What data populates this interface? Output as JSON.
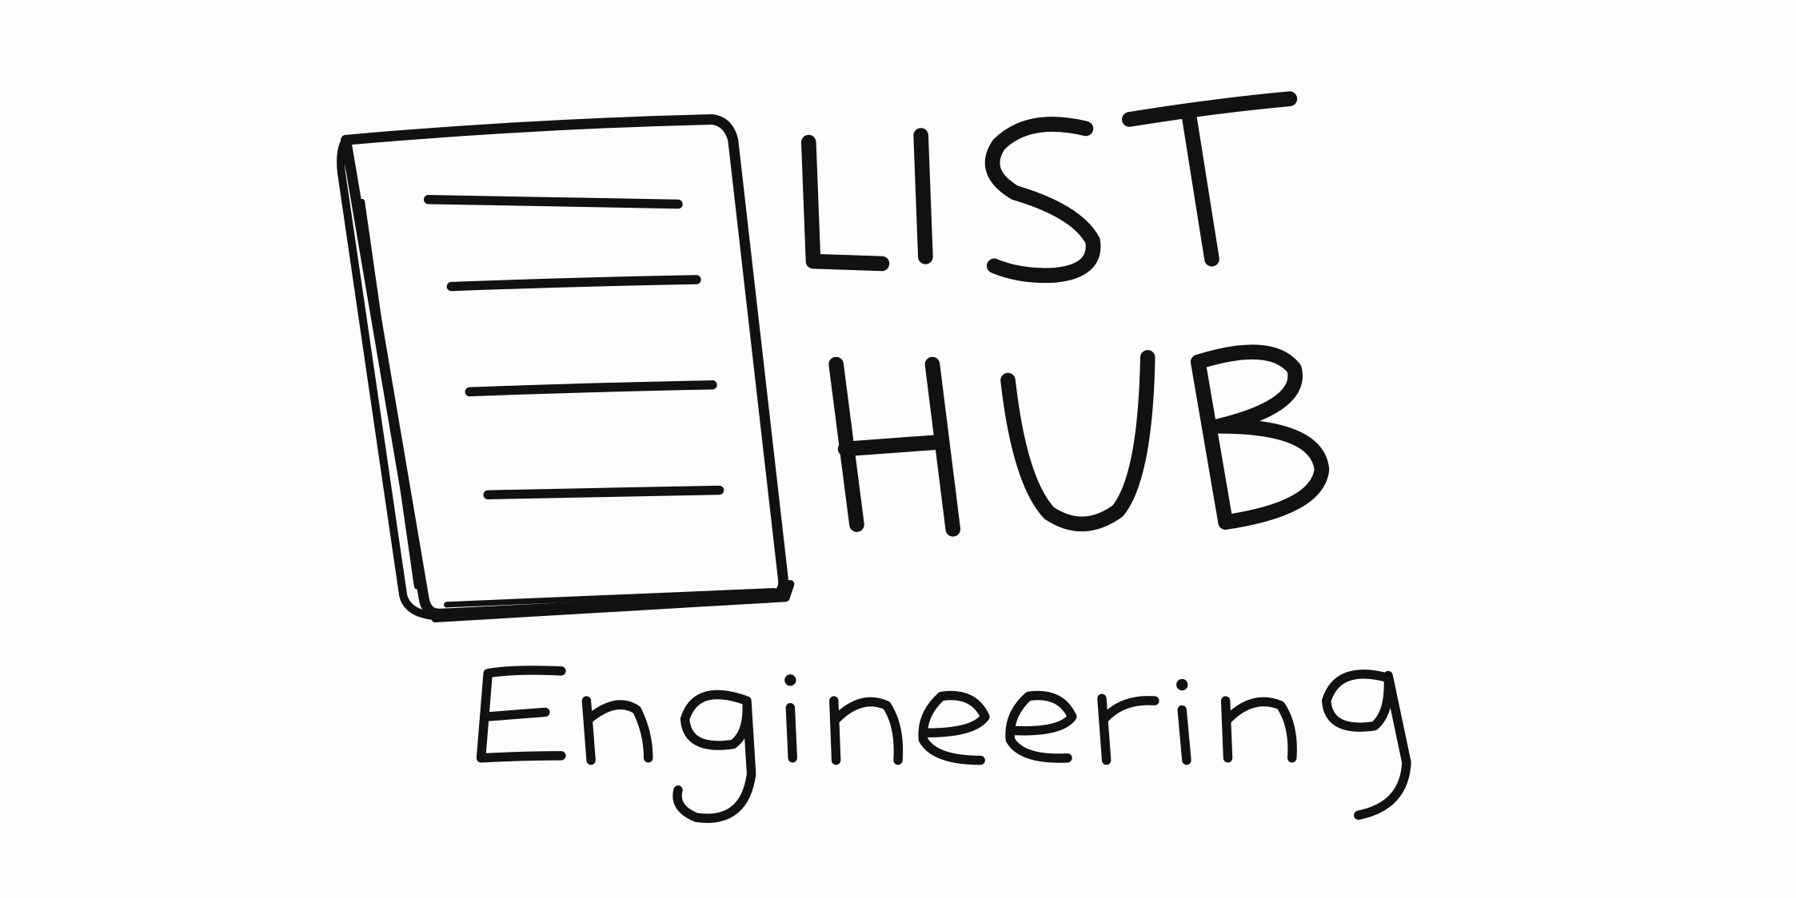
{
  "logo": {
    "line1": "LIST",
    "line2": "HUB",
    "subtitle": "Engineering",
    "icon": "notepad-icon"
  },
  "colors": {
    "ink": "#111111",
    "background": "#fdfdfd"
  }
}
